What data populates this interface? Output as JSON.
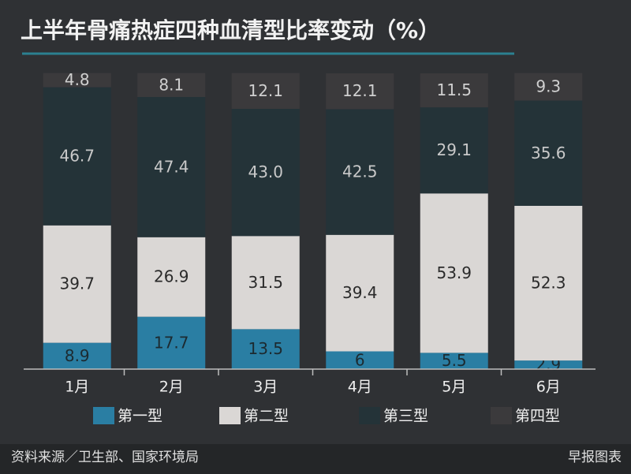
{
  "chart_data": {
    "type": "stacked-bar",
    "title": "上半年骨痛热症四种血清型比率变动（%）",
    "categories": [
      "1月",
      "2月",
      "3月",
      "4月",
      "5月",
      "6月"
    ],
    "series": [
      {
        "name": "第一型",
        "color": "#2a7ea3",
        "values": [
          8.9,
          17.7,
          13.5,
          6,
          5.5,
          2.9
        ]
      },
      {
        "name": "第二型",
        "color": "#dad7d5",
        "values": [
          39.7,
          26.9,
          31.5,
          39.4,
          53.9,
          52.3
        ]
      },
      {
        "name": "第三型",
        "color": "#243338",
        "values": [
          46.7,
          47.4,
          43.0,
          42.5,
          29.1,
          35.6
        ],
        "value_labels": [
          "46.7",
          "47.4",
          "43.0",
          "42.5",
          "29.1",
          "35.6"
        ]
      },
      {
        "name": "第四型",
        "color": "#3b3a3c",
        "values": [
          4.8,
          8.1,
          12.1,
          12.1,
          11.5,
          9.3
        ]
      }
    ],
    "source": "资料来源／卫生部、国家环境局",
    "credit": "早报图表"
  }
}
